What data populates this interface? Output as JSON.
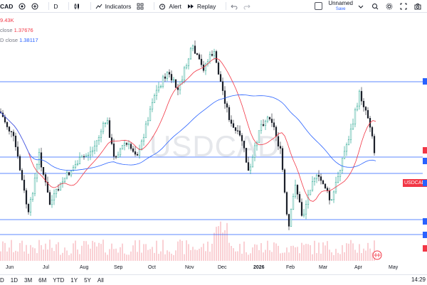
{
  "toolbar": {
    "symbol": "CAD",
    "interval": "D",
    "indicators_label": "Indicators",
    "alert_label": "Alert",
    "replay_label": "Replay",
    "layout_name": "Unnamed",
    "layout_sub": "Save"
  },
  "legend": {
    "volume": "9.43K",
    "ma1_label": "close",
    "ma1_value": "1.37676",
    "ma2_label": "D close",
    "ma2_value": "1.38117"
  },
  "chart": {
    "watermark": "USDCAD",
    "price_tag": "USDCAD",
    "months": [
      "Jun",
      "Jul",
      "Aug",
      "Sep",
      "Oct",
      "Nov",
      "Dec",
      "2026",
      "Feb",
      "Mar",
      "Apr",
      "May"
    ]
  },
  "bottom": {
    "ranges": [
      "D",
      "1D",
      "3M",
      "6M",
      "YTD",
      "1Y",
      "5Y",
      "All"
    ],
    "clock": "14:29"
  },
  "chart_data": {
    "type": "line",
    "series": [
      {
        "values": [
          1.37676
        ]
      },
      {
        "values": [
          1.38117
        ]
      }
    ]
  },
  "colors": {
    "up": "#089981",
    "down": "#131722",
    "ma_red": "#f23645",
    "ma_blue": "#2962ff",
    "volume": "#f5a9b0"
  }
}
